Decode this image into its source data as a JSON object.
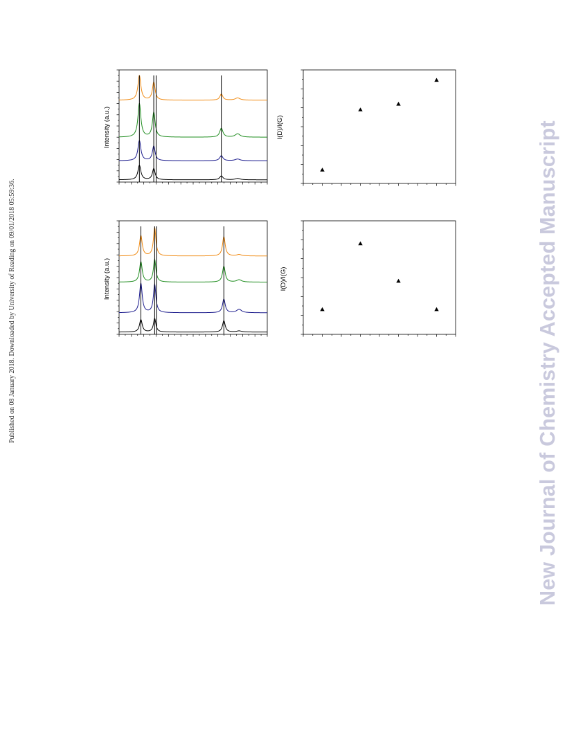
{
  "side_note": "Published on 08 January 2018. Downloaded by University of Reading on 09/01/2018 05:59:36.",
  "watermark": "New Journal of Chemistry Accepted Manuscript",
  "colors": {
    "orange": "#f08a12",
    "green": "#1e8c1e",
    "navy": "#1a1a8c",
    "black": "#000000",
    "watermark": "#c9c9dd"
  },
  "chart_data": [
    {
      "type": "line",
      "id": "spectra-top",
      "ylabel": "Intensity (a.u.)",
      "xlabel": "",
      "reference_lines": [
        0.137,
        0.234,
        0.25,
        0.69
      ],
      "series": [
        {
          "color": "#f08a12",
          "baseline": 0.73,
          "peaks": [
            {
              "x": 0.137,
              "h": 0.22,
              "w": 0.012
            },
            {
              "x": 0.234,
              "h": 0.16,
              "w": 0.011
            },
            {
              "x": 0.69,
              "h": 0.055,
              "w": 0.012
            },
            {
              "x": 0.8,
              "h": 0.02,
              "w": 0.02
            }
          ]
        },
        {
          "color": "#1e8c1e",
          "baseline": 0.4,
          "peaks": [
            {
              "x": 0.137,
              "h": 0.3,
              "w": 0.012
            },
            {
              "x": 0.234,
              "h": 0.22,
              "w": 0.011
            },
            {
              "x": 0.69,
              "h": 0.08,
              "w": 0.013
            },
            {
              "x": 0.8,
              "h": 0.03,
              "w": 0.02
            }
          ]
        },
        {
          "color": "#1a1a8c",
          "baseline": 0.19,
          "peaks": [
            {
              "x": 0.137,
              "h": 0.18,
              "w": 0.012
            },
            {
              "x": 0.234,
              "h": 0.13,
              "w": 0.011
            },
            {
              "x": 0.69,
              "h": 0.045,
              "w": 0.013
            },
            {
              "x": 0.8,
              "h": 0.015,
              "w": 0.02
            }
          ]
        },
        {
          "color": "#000000",
          "baseline": 0.02,
          "peaks": [
            {
              "x": 0.137,
              "h": 0.13,
              "w": 0.012
            },
            {
              "x": 0.234,
              "h": 0.1,
              "w": 0.011
            },
            {
              "x": 0.69,
              "h": 0.035,
              "w": 0.013
            },
            {
              "x": 0.8,
              "h": 0.012,
              "w": 0.02
            }
          ]
        }
      ]
    },
    {
      "type": "scatter",
      "id": "ratio-top",
      "ylabel": "I(D)/I(G)",
      "xlabel": "",
      "xlim": [
        0,
        4
      ],
      "ylim": [
        0,
        1
      ],
      "x": [
        0.5,
        1.5,
        2.5,
        3.5
      ],
      "y": [
        0.12,
        0.65,
        0.7,
        0.91
      ]
    },
    {
      "type": "line",
      "id": "spectra-bottom",
      "ylabel": "Intensity (a.u.)",
      "xlabel": "",
      "reference_lines": [
        0.147,
        0.24,
        0.254,
        0.707
      ],
      "series": [
        {
          "color": "#f08a12",
          "baseline": 0.69,
          "peaks": [
            {
              "x": 0.147,
              "h": 0.18,
              "w": 0.011
            },
            {
              "x": 0.24,
              "h": 0.25,
              "w": 0.01
            },
            {
              "x": 0.707,
              "h": 0.17,
              "w": 0.011
            },
            {
              "x": 0.81,
              "h": 0.012,
              "w": 0.02
            }
          ]
        },
        {
          "color": "#1e8c1e",
          "baseline": 0.46,
          "peaks": [
            {
              "x": 0.147,
              "h": 0.18,
              "w": 0.011
            },
            {
              "x": 0.24,
              "h": 0.2,
              "w": 0.01
            },
            {
              "x": 0.707,
              "h": 0.14,
              "w": 0.011
            },
            {
              "x": 0.81,
              "h": 0.02,
              "w": 0.02
            }
          ]
        },
        {
          "color": "#1a1a8c",
          "baseline": 0.19,
          "peaks": [
            {
              "x": 0.147,
              "h": 0.26,
              "w": 0.011
            },
            {
              "x": 0.24,
              "h": 0.25,
              "w": 0.01
            },
            {
              "x": 0.707,
              "h": 0.12,
              "w": 0.011
            },
            {
              "x": 0.81,
              "h": 0.03,
              "w": 0.02
            }
          ]
        },
        {
          "color": "#000000",
          "baseline": 0.02,
          "peaks": [
            {
              "x": 0.147,
              "h": 0.11,
              "w": 0.011
            },
            {
              "x": 0.24,
              "h": 0.12,
              "w": 0.01
            },
            {
              "x": 0.707,
              "h": 0.1,
              "w": 0.011
            },
            {
              "x": 0.81,
              "h": 0.01,
              "w": 0.02
            }
          ]
        }
      ]
    },
    {
      "type": "scatter",
      "id": "ratio-bottom",
      "ylabel": "I(D)/I(G)",
      "xlabel": "",
      "xlim": [
        0,
        4
      ],
      "ylim": [
        0,
        1
      ],
      "x": [
        0.5,
        1.5,
        2.5,
        3.5
      ],
      "y": [
        0.22,
        0.8,
        0.47,
        0.22
      ]
    }
  ]
}
